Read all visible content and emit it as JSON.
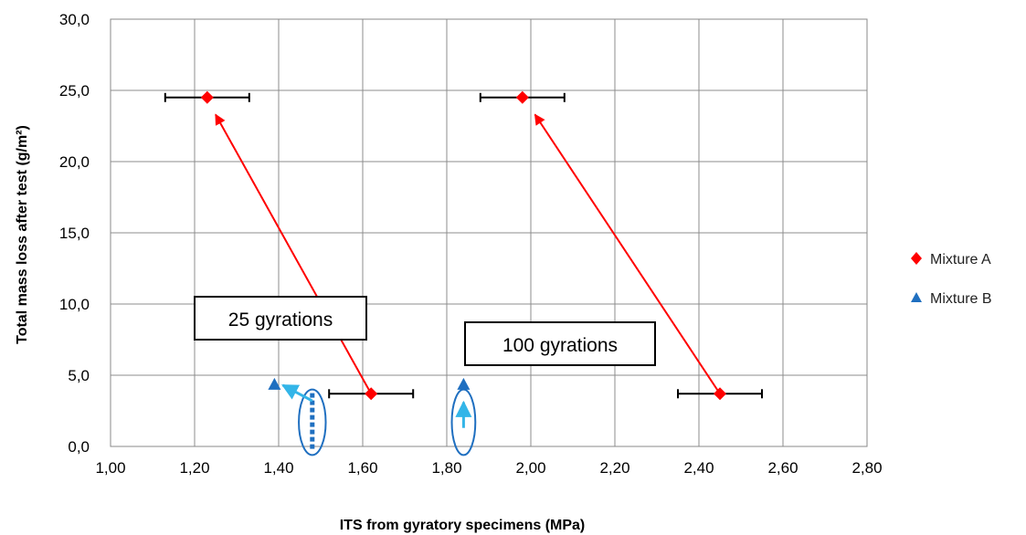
{
  "chart_data": {
    "type": "scatter",
    "title": "",
    "xlabel": "ITS from gyratory specimens (MPa)",
    "ylabel": "Total mass loss after test (g/m²)",
    "xlim": [
      1.0,
      2.8
    ],
    "ylim": [
      0.0,
      30.0
    ],
    "x_ticks": [
      1.0,
      1.2,
      1.4,
      1.6,
      1.8,
      2.0,
      2.2,
      2.4,
      2.6,
      2.8
    ],
    "y_ticks": [
      0.0,
      5.0,
      10.0,
      15.0,
      20.0,
      25.0,
      30.0
    ],
    "x_tick_labels": [
      "1,00",
      "1,20",
      "1,40",
      "1,60",
      "1,80",
      "2,00",
      "2,20",
      "2,40",
      "2,60",
      "2,80"
    ],
    "y_tick_labels": [
      "0,0",
      "5,0",
      "10,0",
      "15,0",
      "20,0",
      "25,0",
      "30,0"
    ],
    "grid": true,
    "legend_position": "right",
    "series": [
      {
        "name": "Mixture A",
        "marker": "diamond",
        "color": "#ff0000",
        "points": [
          {
            "x": 1.23,
            "y": 24.5,
            "xerr": 0.1
          },
          {
            "x": 1.98,
            "y": 24.5,
            "xerr": 0.1
          },
          {
            "x": 1.62,
            "y": 3.7,
            "xerr": 0.1
          },
          {
            "x": 2.45,
            "y": 3.7,
            "xerr": 0.1
          }
        ]
      },
      {
        "name": "Mixture B",
        "marker": "triangle",
        "color": "#1f6fc0",
        "points": [
          {
            "x": 1.39,
            "y": 4.3
          },
          {
            "x": 1.84,
            "y": 4.3
          }
        ]
      }
    ],
    "annotations": [
      {
        "text": "25 gyrations"
      },
      {
        "text": "100 gyrations"
      }
    ],
    "arrows": [
      {
        "color": "#ff0000",
        "from": [
          1.62,
          3.7
        ],
        "to": [
          1.25,
          23.3
        ]
      },
      {
        "color": "#ff0000",
        "from": [
          2.45,
          3.7
        ],
        "to": [
          2.01,
          23.3
        ]
      },
      {
        "color": "#33b5e8",
        "from": [
          1.48,
          3.2
        ],
        "to": [
          1.41,
          4.3
        ]
      },
      {
        "color": "#33b5e8",
        "from": [
          1.84,
          1.3
        ],
        "to": [
          1.84,
          3.1
        ]
      }
    ],
    "ellipses": [
      {
        "cx": 1.48,
        "cy": 1.7,
        "rx": 0.032,
        "ry": 2.3,
        "dashed_core": true
      },
      {
        "cx": 1.84,
        "cy": 1.7,
        "rx": 0.028,
        "ry": 2.3,
        "dashed_core": false
      }
    ]
  }
}
